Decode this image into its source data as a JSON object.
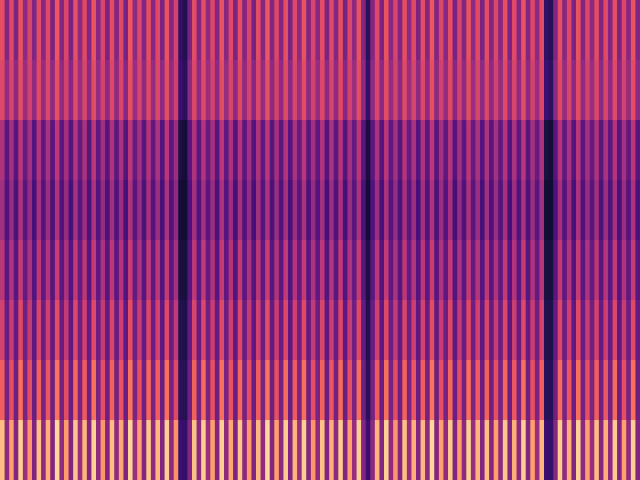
{
  "chart_data": {
    "type": "heatmap",
    "tick_labels": false,
    "zlim": [
      0,
      100
    ],
    "z": [
      [
        62,
        38,
        60,
        36,
        63,
        40,
        58,
        37,
        61,
        39,
        60,
        36,
        64,
        38,
        59,
        35,
        62,
        40,
        60,
        37,
        63,
        39,
        58,
        36,
        61,
        38,
        60,
        35,
        64,
        40,
        59,
        37,
        62,
        39,
        60,
        36,
        63,
        38,
        57,
        18,
        14,
        36,
        61,
        38,
        62,
        40,
        59,
        37,
        63,
        39,
        60,
        36,
        62,
        38,
        58,
        35,
        61,
        39,
        64,
        37,
        59,
        38,
        62,
        36,
        60,
        40,
        63,
        37,
        58,
        39,
        61,
        36,
        60,
        38,
        62,
        35,
        59,
        40,
        63,
        37,
        16,
        38,
        60,
        36,
        63,
        39,
        58,
        37,
        62,
        40,
        60,
        36,
        61,
        38,
        64,
        37,
        59,
        39,
        62,
        35,
        58,
        38,
        63,
        40,
        60,
        36,
        61,
        37,
        59,
        39,
        62,
        36,
        60,
        38,
        63,
        37,
        59,
        40,
        61,
        18,
        15,
        37,
        62,
        39,
        60,
        36,
        63,
        38,
        59,
        40,
        61,
        37,
        60,
        38,
        62,
        36,
        59,
        39,
        63,
        37
      ],
      [
        60,
        42,
        58,
        40,
        61,
        43,
        57,
        41,
        60,
        42,
        59,
        40,
        62,
        41,
        57,
        39,
        60,
        43,
        58,
        40,
        61,
        42,
        57,
        40,
        59,
        41,
        58,
        39,
        62,
        43,
        58,
        41,
        60,
        42,
        59,
        40,
        61,
        41,
        56,
        20,
        16,
        40,
        59,
        41,
        60,
        43,
        57,
        40,
        61,
        42,
        58,
        40,
        60,
        41,
        57,
        39,
        59,
        42,
        62,
        40,
        57,
        41,
        60,
        40,
        58,
        43,
        61,
        40,
        57,
        42,
        59,
        40,
        58,
        41,
        60,
        39,
        57,
        43,
        61,
        40,
        18,
        41,
        58,
        40,
        61,
        42,
        57,
        40,
        60,
        43,
        58,
        40,
        59,
        41,
        62,
        40,
        57,
        42,
        60,
        39,
        57,
        41,
        61,
        43,
        58,
        40,
        59,
        40,
        57,
        42,
        60,
        40,
        58,
        41,
        61,
        40,
        57,
        43,
        59,
        20,
        17,
        40,
        60,
        42,
        58,
        40,
        61,
        41,
        57,
        43,
        59,
        40,
        58,
        41,
        60,
        39,
        57,
        42,
        61,
        40
      ],
      [
        48,
        28,
        46,
        27,
        50,
        30,
        45,
        26,
        49,
        29,
        47,
        27,
        51,
        28,
        45,
        26,
        49,
        30,
        47,
        27,
        50,
        29,
        45,
        27,
        48,
        28,
        47,
        26,
        51,
        30,
        46,
        27,
        49,
        29,
        47,
        26,
        50,
        28,
        44,
        12,
        10,
        27,
        48,
        28,
        49,
        30,
        46,
        27,
        50,
        29,
        47,
        26,
        49,
        28,
        45,
        26,
        48,
        29,
        51,
        27,
        46,
        28,
        49,
        26,
        47,
        30,
        50,
        27,
        45,
        29,
        48,
        26,
        47,
        28,
        49,
        26,
        46,
        30,
        50,
        27,
        11,
        28,
        47,
        26,
        50,
        29,
        45,
        27,
        49,
        30,
        47,
        26,
        48,
        28,
        51,
        27,
        46,
        29,
        49,
        26,
        45,
        28,
        50,
        30,
        47,
        26,
        48,
        27,
        46,
        29,
        49,
        26,
        47,
        28,
        50,
        27,
        46,
        30,
        48,
        12,
        10,
        27,
        49,
        29,
        47,
        26,
        50,
        28,
        46,
        30,
        48,
        27,
        47,
        28,
        49,
        26,
        46,
        29,
        50,
        27
      ],
      [
        45,
        25,
        43,
        24,
        47,
        27,
        42,
        23,
        46,
        26,
        44,
        24,
        48,
        25,
        42,
        23,
        46,
        27,
        44,
        24,
        47,
        26,
        42,
        24,
        45,
        25,
        44,
        23,
        48,
        27,
        43,
        24,
        46,
        26,
        44,
        23,
        47,
        25,
        41,
        10,
        9,
        24,
        45,
        25,
        46,
        27,
        43,
        24,
        47,
        26,
        44,
        23,
        46,
        25,
        42,
        23,
        45,
        26,
        48,
        24,
        43,
        25,
        46,
        23,
        44,
        27,
        47,
        24,
        42,
        26,
        45,
        23,
        44,
        25,
        46,
        23,
        43,
        27,
        47,
        24,
        10,
        25,
        44,
        23,
        47,
        26,
        42,
        24,
        46,
        27,
        44,
        23,
        45,
        25,
        48,
        24,
        43,
        26,
        46,
        23,
        42,
        25,
        47,
        27,
        44,
        23,
        45,
        24,
        43,
        26,
        46,
        23,
        44,
        25,
        47,
        24,
        43,
        27,
        45,
        10,
        9,
        24,
        46,
        26,
        44,
        23,
        47,
        25,
        43,
        27,
        45,
        24,
        44,
        25,
        46,
        23,
        43,
        26,
        47,
        24
      ],
      [
        50,
        28,
        48,
        27,
        53,
        30,
        47,
        26,
        51,
        29,
        49,
        27,
        54,
        28,
        47,
        26,
        52,
        30,
        50,
        27,
        53,
        29,
        47,
        27,
        51,
        28,
        49,
        26,
        54,
        30,
        48,
        27,
        52,
        29,
        50,
        26,
        53,
        28,
        46,
        12,
        11,
        27,
        51,
        28,
        52,
        30,
        48,
        27,
        53,
        29,
        49,
        26,
        52,
        28,
        47,
        26,
        50,
        29,
        54,
        27,
        48,
        28,
        52,
        26,
        49,
        30,
        53,
        27,
        47,
        29,
        51,
        26,
        49,
        28,
        52,
        26,
        48,
        30,
        53,
        27,
        12,
        28,
        50,
        26,
        53,
        29,
        47,
        27,
        51,
        30,
        49,
        26,
        50,
        28,
        54,
        27,
        48,
        29,
        52,
        26,
        47,
        28,
        53,
        30,
        49,
        26,
        51,
        27,
        48,
        29,
        52,
        26,
        49,
        28,
        53,
        27,
        48,
        30,
        50,
        12,
        11,
        27,
        52,
        29,
        49,
        26,
        53,
        28,
        48,
        30,
        50,
        27,
        49,
        28,
        52,
        26,
        48,
        29,
        53,
        27
      ],
      [
        57,
        31,
        54,
        30,
        60,
        33,
        53,
        29,
        58,
        32,
        56,
        30,
        61,
        31,
        53,
        29,
        59,
        33,
        56,
        30,
        60,
        32,
        53,
        30,
        58,
        31,
        55,
        29,
        61,
        33,
        54,
        30,
        59,
        32,
        57,
        29,
        60,
        31,
        52,
        14,
        13,
        30,
        58,
        31,
        59,
        33,
        54,
        30,
        60,
        32,
        55,
        29,
        59,
        31,
        53,
        29,
        57,
        32,
        61,
        30,
        54,
        31,
        59,
        29,
        56,
        33,
        60,
        30,
        53,
        32,
        58,
        29,
        55,
        31,
        59,
        29,
        54,
        33,
        60,
        30,
        14,
        31,
        56,
        29,
        60,
        32,
        53,
        30,
        58,
        33,
        55,
        29,
        57,
        31,
        61,
        30,
        54,
        32,
        59,
        29,
        53,
        31,
        60,
        33,
        56,
        29,
        58,
        30,
        54,
        32,
        59,
        29,
        55,
        31,
        60,
        30,
        54,
        33,
        57,
        14,
        13,
        30,
        59,
        32,
        55,
        29,
        60,
        31,
        54,
        33,
        57,
        30,
        55,
        31,
        59,
        29,
        54,
        32,
        60,
        30
      ],
      [
        66,
        34,
        62,
        33,
        70,
        36,
        61,
        32,
        67,
        35,
        64,
        33,
        71,
        34,
        61,
        32,
        68,
        36,
        65,
        33,
        70,
        35,
        61,
        33,
        67,
        34,
        63,
        32,
        71,
        36,
        62,
        33,
        68,
        35,
        66,
        32,
        70,
        34,
        60,
        16,
        15,
        33,
        67,
        34,
        69,
        36,
        62,
        33,
        70,
        35,
        63,
        32,
        68,
        34,
        61,
        32,
        66,
        35,
        71,
        33,
        62,
        34,
        69,
        32,
        65,
        36,
        70,
        33,
        61,
        35,
        67,
        32,
        64,
        34,
        69,
        32,
        62,
        36,
        70,
        33,
        16,
        34,
        65,
        32,
        70,
        35,
        61,
        33,
        67,
        36,
        64,
        32,
        66,
        34,
        71,
        33,
        62,
        35,
        68,
        32,
        61,
        34,
        70,
        36,
        65,
        32,
        67,
        33,
        62,
        35,
        68,
        32,
        64,
        34,
        70,
        33,
        62,
        36,
        66,
        16,
        15,
        33,
        69,
        35,
        64,
        32,
        70,
        34,
        62,
        36,
        66,
        33,
        64,
        34,
        69,
        32,
        62,
        35,
        70,
        33
      ],
      [
        86,
        40,
        80,
        38,
        90,
        43,
        78,
        37,
        87,
        41,
        83,
        38,
        92,
        40,
        79,
        37,
        88,
        43,
        84,
        38,
        90,
        41,
        78,
        38,
        86,
        40,
        82,
        37,
        91,
        43,
        80,
        38,
        88,
        41,
        85,
        37,
        90,
        40,
        77,
        20,
        18,
        38,
        87,
        40,
        89,
        43,
        80,
        38,
        90,
        41,
        82,
        37,
        88,
        40,
        79,
        37,
        85,
        41,
        92,
        38,
        80,
        40,
        89,
        37,
        84,
        43,
        90,
        38,
        78,
        41,
        87,
        37,
        83,
        40,
        89,
        37,
        80,
        43,
        90,
        38,
        20,
        40,
        84,
        37,
        90,
        41,
        78,
        38,
        87,
        43,
        83,
        37,
        85,
        40,
        92,
        38,
        80,
        41,
        88,
        37,
        79,
        40,
        90,
        43,
        84,
        37,
        86,
        38,
        80,
        41,
        88,
        37,
        83,
        40,
        90,
        38,
        80,
        43,
        85,
        20,
        18,
        38,
        89,
        41,
        83,
        37,
        90,
        40,
        80,
        43,
        86,
        38,
        83,
        40,
        89,
        37,
        80,
        41,
        90,
        38
      ]
    ]
  }
}
